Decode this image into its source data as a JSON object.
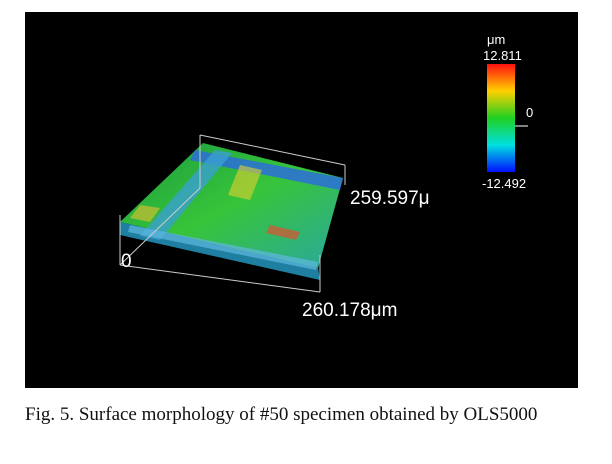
{
  "figure": {
    "colorbar": {
      "unit": "μm",
      "max": "12.811",
      "mid": "0",
      "min": "-12.492"
    },
    "axis_labels": {
      "y_length": "259.597μ",
      "origin": "0",
      "x_length": "260.178μm"
    },
    "caption": "Fig. 5. Surface morphology of #50 specimen obtained by OLS5000"
  }
}
